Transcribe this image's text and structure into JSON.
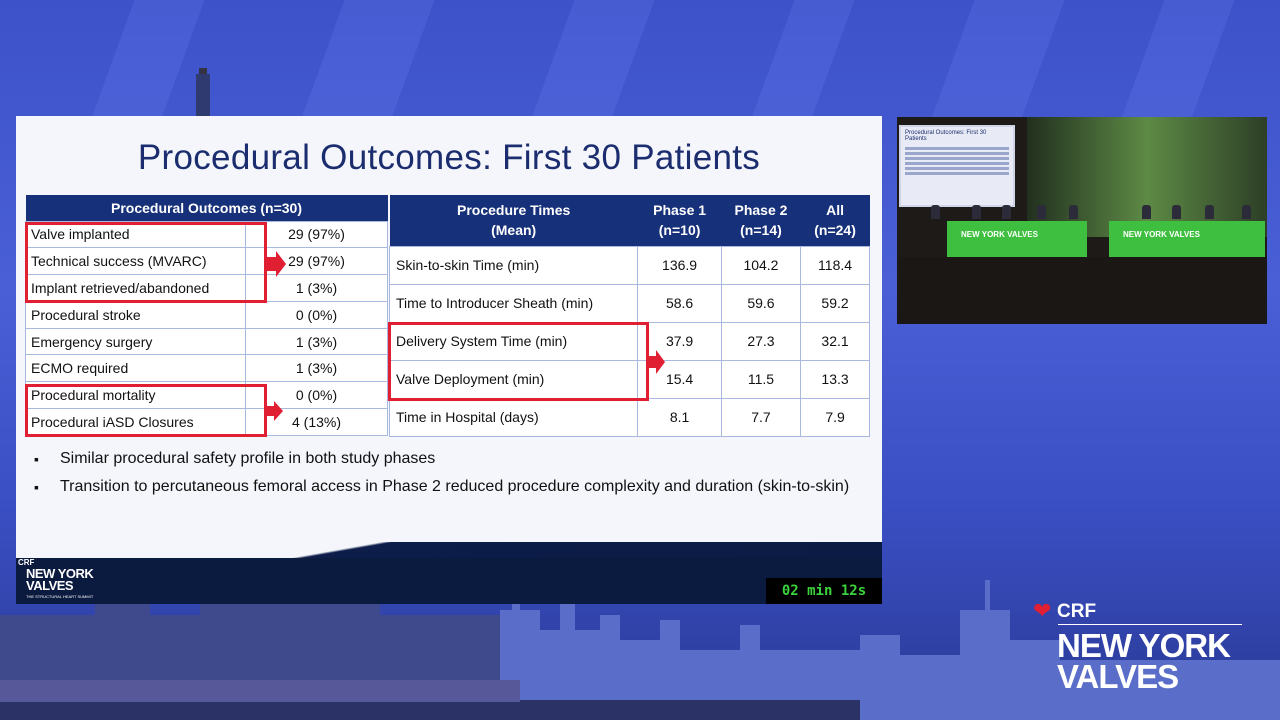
{
  "slide": {
    "title": "Procedural Outcomes: First 30 Patients",
    "outcomes_table": {
      "header": "Procedural Outcomes (n=30)",
      "rows": [
        {
          "label": "Valve implanted",
          "value": "29 (97%)"
        },
        {
          "label": "Technical success (MVARC)",
          "value": "29 (97%)"
        },
        {
          "label": "Implant retrieved/abandoned",
          "value": "1 (3%)"
        },
        {
          "label": "Procedural stroke",
          "value": "0 (0%)"
        },
        {
          "label": "Emergency surgery",
          "value": "1 (3%)"
        },
        {
          "label": "ECMO required",
          "value": "1 (3%)"
        },
        {
          "label": "Procedural mortality",
          "value": "0 (0%)"
        },
        {
          "label": "Procedural iASD Closures",
          "value": "4 (13%)"
        }
      ]
    },
    "times_table": {
      "headers": {
        "col0_l1": "Procedure Times",
        "col0_l2": "(Mean)",
        "col1_l1": "Phase 1",
        "col1_l2": "(n=10)",
        "col2_l1": "Phase 2",
        "col2_l2": "(n=14)",
        "col3_l1": "All",
        "col3_l2": "(n=24)"
      },
      "rows": [
        {
          "label": "Skin-to-skin Time (min)",
          "p1": "136.9",
          "p2": "104.2",
          "all": "118.4"
        },
        {
          "label": "Time to Introducer Sheath (min)",
          "p1": "58.6",
          "p2": "59.6",
          "all": "59.2"
        },
        {
          "label": "Delivery System Time (min)",
          "p1": "37.9",
          "p2": "27.3",
          "all": "32.1"
        },
        {
          "label": "Valve Deployment (min)",
          "p1": "15.4",
          "p2": "11.5",
          "all": "13.3"
        },
        {
          "label": "Time in Hospital (days)",
          "p1": "8.1",
          "p2": "7.7",
          "all": "7.9"
        }
      ]
    },
    "bullets": [
      "Similar procedural safety profile in both study phases",
      "Transition to percutaneous femoral access in Phase 2 reduced procedure complexity and duration (skin-to-skin)"
    ],
    "footer_logo": {
      "crf": "CRF",
      "line1": "NEW YORK",
      "line2": "VALVES",
      "tagline": "THE STRUCTURAL HEART SUMMIT"
    },
    "timer": "02 min 12s"
  },
  "video_inset": {
    "screen_title": "Procedural Outcomes: First 30 Patients",
    "banner_text_1": "NEW YORK VALVES",
    "banner_text_2": "NEW YORK VALVES"
  },
  "brand": {
    "crf": "CRF",
    "line1": "NEW YORK",
    "line2": "VALVES"
  },
  "colors": {
    "accent_red": "#e02032",
    "navy": "#17307a",
    "timer_green": "#3bd23b",
    "background_blue": "#4a5fd6"
  }
}
